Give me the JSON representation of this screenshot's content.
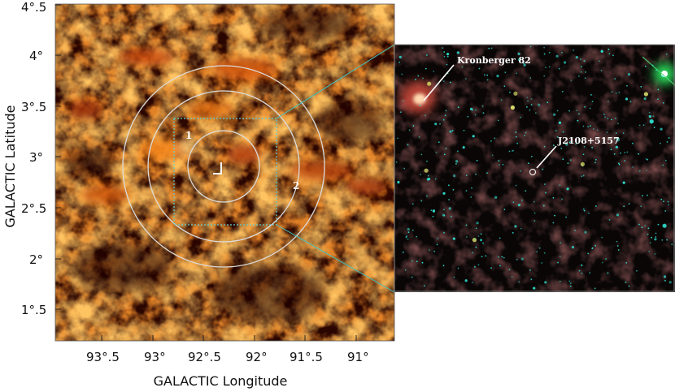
{
  "figure": {
    "left_panel": {
      "x_axis_title": "GALACTIC Longitude",
      "y_axis_title": "GALACTIC Latitude",
      "x_tick_labels": [
        "93°.5",
        "93°",
        "92°.5",
        "92°",
        "91°.5",
        "91°"
      ],
      "y_tick_labels": [
        "4°.5",
        "4°",
        "3°.5",
        "3°",
        "2°.5",
        "2°",
        "1°.5"
      ],
      "region_labels": [
        "1",
        "2"
      ],
      "colormap": [
        "#1a0300",
        "#5a1200",
        "#a63a00",
        "#ff9a1e"
      ]
    },
    "inset": {
      "labels": [
        "Kronberger 82",
        "J2108+5157"
      ],
      "background_color": "#0a0606",
      "star_color": "#2fe0d0"
    },
    "connector_color": "#3fc4c4"
  }
}
